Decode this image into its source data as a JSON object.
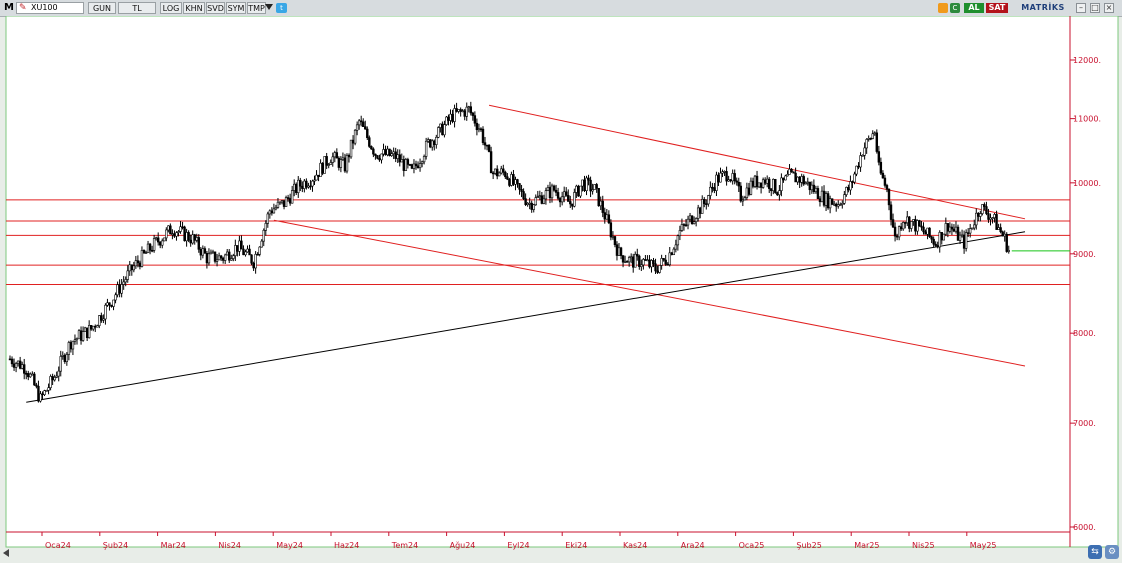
{
  "toolbar": {
    "logo": "M",
    "symbol": "XU100",
    "period": "GUN",
    "currency": "TL",
    "log_btn": "LOG",
    "khn_btn": "KHN",
    "svd_btn": "SVD",
    "sym_btn": "SYM",
    "tmp_btn": "TMP",
    "buy_label": "AL",
    "sell_label": "SAT",
    "brand": "MATRİKS",
    "icons": [
      "edit-icon",
      "dropdown-arrow-icon",
      "twitter-icon",
      "rss-icon",
      "refresh-icon",
      "minimize-icon",
      "maximize-icon",
      "close-icon"
    ]
  },
  "colors": {
    "axis": "#c8102e",
    "candle": "#000000",
    "resistance": "#e02020",
    "support": "#000000",
    "last_price": "#18c418",
    "chart_bg": "#ffffff",
    "frame": "#7ec87e"
  },
  "chart_data": {
    "type": "candlestick",
    "title": "",
    "xlabel": "",
    "ylabel": "",
    "ylim": [
      6000,
      12700
    ],
    "y_scale": "log",
    "grid": false,
    "y_ticks": [
      {
        "value": 6000,
        "label": "6000."
      },
      {
        "value": 7000,
        "label": "7000."
      },
      {
        "value": 8000,
        "label": "8000."
      },
      {
        "value": 9000,
        "label": "9000."
      },
      {
        "value": 10000,
        "label": "10000."
      },
      {
        "value": 11000,
        "label": "11000."
      },
      {
        "value": 12000,
        "label": "12000."
      }
    ],
    "x_ticks": [
      "Oca24",
      "Şub24",
      "Mar24",
      "Nis24",
      "May24",
      "Haz24",
      "Tem24",
      "Ağu24",
      "Eyl24",
      "Eki24",
      "Kas24",
      "Ara24",
      "Oca25",
      "Şub25",
      "Mar25",
      "Nis25",
      "May25"
    ],
    "close_path": [
      [
        0,
        7700
      ],
      [
        8,
        7600
      ],
      [
        15,
        7250
      ],
      [
        22,
        7500
      ],
      [
        30,
        7900
      ],
      [
        40,
        8050
      ],
      [
        50,
        8400
      ],
      [
        60,
        8800
      ],
      [
        70,
        9100
      ],
      [
        80,
        9350
      ],
      [
        90,
        9200
      ],
      [
        97,
        8950
      ],
      [
        105,
        8950
      ],
      [
        112,
        9100
      ],
      [
        120,
        8900
      ],
      [
        128,
        9600
      ],
      [
        135,
        9700
      ],
      [
        142,
        9950
      ],
      [
        150,
        10100
      ],
      [
        158,
        10400
      ],
      [
        165,
        10250
      ],
      [
        172,
        10950
      ],
      [
        180,
        10450
      ],
      [
        190,
        10400
      ],
      [
        198,
        10150
      ],
      [
        206,
        10600
      ],
      [
        212,
        10800
      ],
      [
        218,
        11050
      ],
      [
        226,
        11150
      ],
      [
        232,
        10800
      ],
      [
        238,
        10150
      ],
      [
        244,
        10150
      ],
      [
        250,
        9900
      ],
      [
        256,
        9700
      ],
      [
        262,
        9800
      ],
      [
        268,
        9900
      ],
      [
        276,
        9700
      ],
      [
        282,
        10000
      ],
      [
        288,
        9900
      ],
      [
        294,
        9450
      ],
      [
        300,
        9000
      ],
      [
        306,
        8900
      ],
      [
        312,
        8900
      ],
      [
        318,
        8800
      ],
      [
        324,
        8950
      ],
      [
        330,
        9300
      ],
      [
        336,
        9500
      ],
      [
        342,
        9700
      ],
      [
        348,
        10050
      ],
      [
        354,
        10150
      ],
      [
        360,
        9800
      ],
      [
        366,
        10000
      ],
      [
        372,
        10050
      ],
      [
        378,
        9900
      ],
      [
        384,
        10100
      ],
      [
        390,
        10050
      ],
      [
        396,
        9900
      ],
      [
        402,
        9750
      ],
      [
        408,
        9700
      ],
      [
        414,
        9950
      ],
      [
        420,
        10500
      ],
      [
        426,
        10800
      ],
      [
        428,
        10200
      ],
      [
        432,
        9900
      ],
      [
        436,
        9200
      ],
      [
        440,
        9500
      ],
      [
        448,
        9350
      ],
      [
        456,
        9150
      ],
      [
        462,
        9400
      ],
      [
        470,
        9150
      ],
      [
        478,
        9650
      ],
      [
        484,
        9500
      ],
      [
        490,
        9200
      ],
      [
        492,
        9050
      ]
    ],
    "last_price": 9040,
    "horizontal_levels": [
      9750,
      9450,
      9250,
      8850,
      8600
    ],
    "trendlines": [
      {
        "type": "resistance",
        "from": [
          236,
          11220
        ],
        "to": [
          500,
          9480
        ]
      },
      {
        "type": "resistance",
        "from": [
          130,
          9460
        ],
        "to": [
          500,
          7620
        ]
      },
      {
        "type": "support",
        "from": [
          8,
          7220
        ],
        "to": [
          500,
          9300
        ]
      }
    ]
  }
}
